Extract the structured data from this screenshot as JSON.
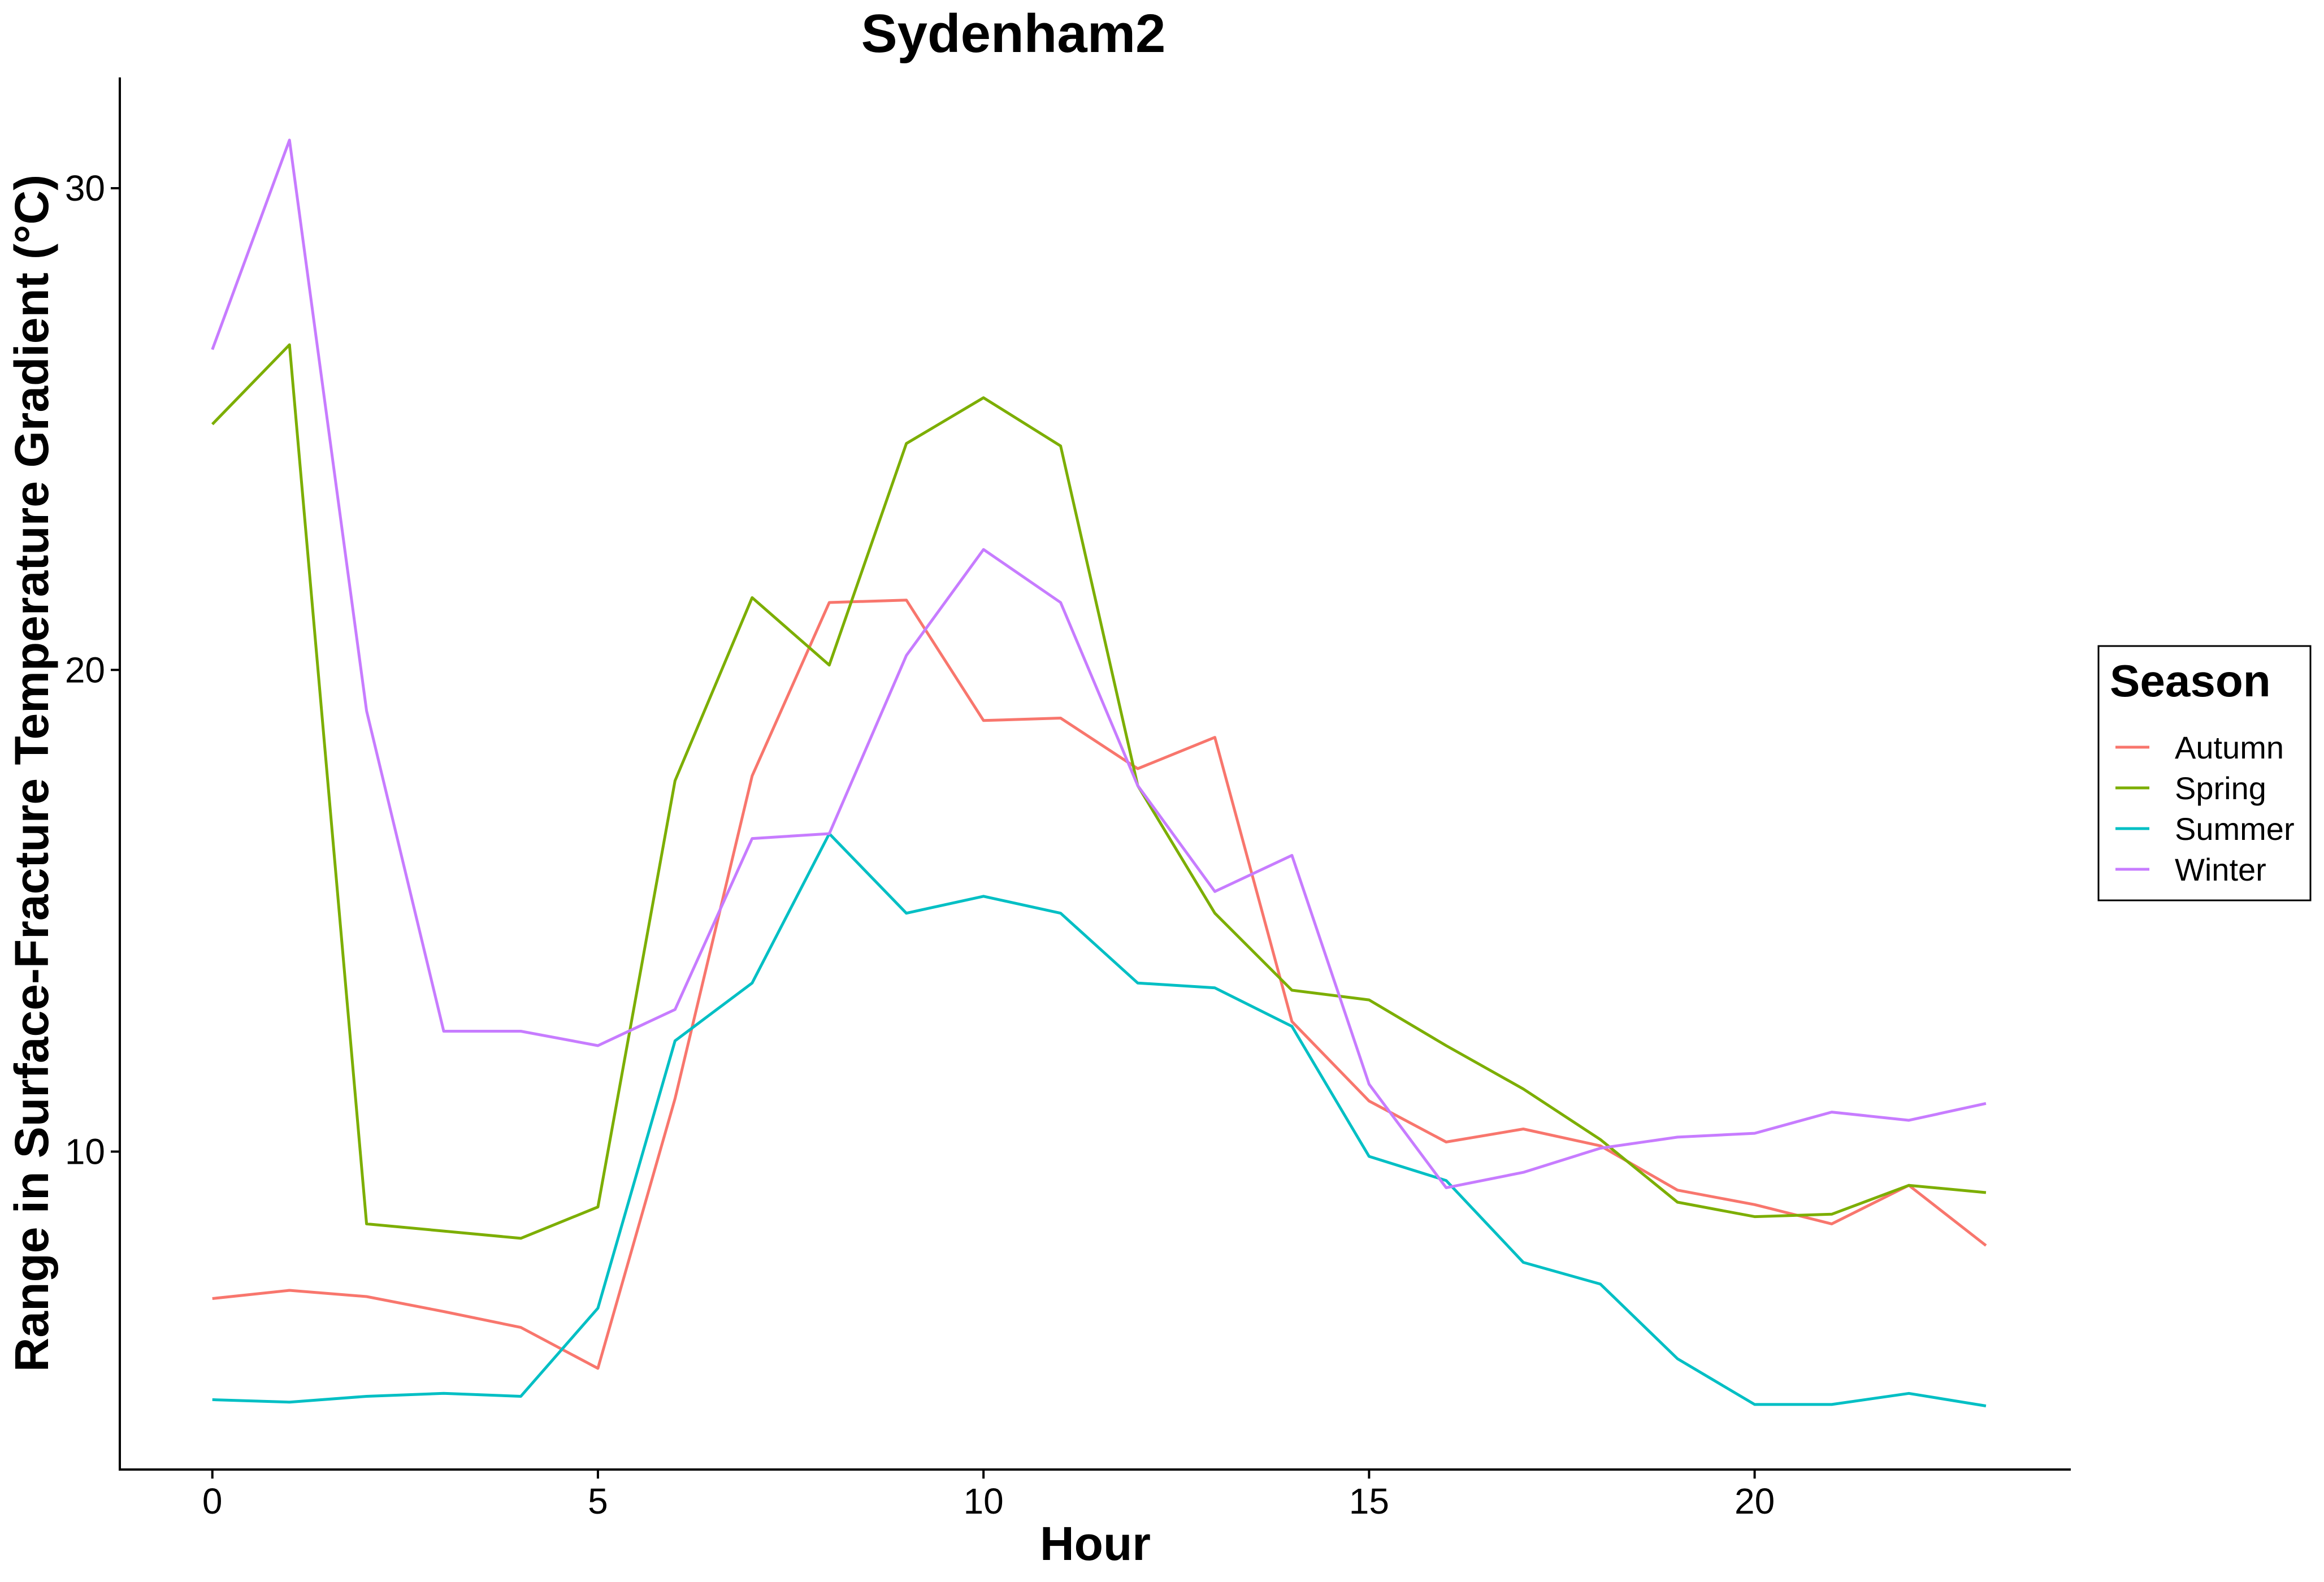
{
  "chart_data": {
    "type": "line",
    "title": "Sydenham2",
    "xlabel": "Hour",
    "ylabel": "Range in Surface-Fracture Temperature Gradient (°C)",
    "xlim": [
      -1.2,
      24.1
    ],
    "ylim": [
      3.4,
      32.3
    ],
    "xticks": [
      0,
      5,
      10,
      15,
      20
    ],
    "yticks": [
      10,
      20,
      30
    ],
    "grid": false,
    "legend": {
      "title": "Season",
      "position": "right"
    },
    "x": [
      0,
      1,
      2,
      3,
      4,
      5,
      6,
      7,
      8,
      9,
      10,
      11,
      12,
      13,
      14,
      15,
      16,
      17,
      18,
      19,
      20,
      21,
      22,
      23
    ],
    "series": [
      {
        "name": "Autumn",
        "color": "#F8766D",
        "values": [
          6.95,
          7.12,
          6.99,
          6.68,
          6.35,
          5.5,
          11.1,
          17.8,
          21.4,
          21.45,
          18.95,
          19.0,
          17.95,
          18.6,
          12.7,
          11.05,
          10.2,
          10.47,
          10.12,
          9.2,
          8.9,
          8.5,
          9.3,
          8.05
        ]
      },
      {
        "name": "Spring",
        "color": "#7CAE00",
        "values": [
          25.1,
          26.75,
          8.5,
          8.35,
          8.2,
          8.85,
          17.7,
          21.5,
          20.1,
          24.7,
          25.65,
          24.65,
          17.6,
          14.95,
          13.35,
          13.15,
          12.2,
          11.3,
          10.25,
          8.95,
          8.65,
          8.7,
          9.3,
          9.15
        ]
      },
      {
        "name": "Summer",
        "color": "#00BFC4",
        "values": [
          4.85,
          4.8,
          4.92,
          4.98,
          4.92,
          6.75,
          12.3,
          13.5,
          16.6,
          14.95,
          15.3,
          14.95,
          13.5,
          13.4,
          12.6,
          9.9,
          9.4,
          7.7,
          7.25,
          5.7,
          4.75,
          4.75,
          4.98,
          4.72
        ]
      },
      {
        "name": "Winter",
        "color": "#C77CFF",
        "values": [
          26.65,
          31.0,
          19.15,
          12.5,
          12.5,
          12.2,
          12.95,
          16.5,
          16.6,
          20.3,
          22.5,
          21.4,
          17.6,
          15.4,
          16.15,
          11.4,
          9.25,
          9.57,
          10.07,
          10.3,
          10.38,
          10.82,
          10.65,
          11.0
        ]
      }
    ]
  }
}
